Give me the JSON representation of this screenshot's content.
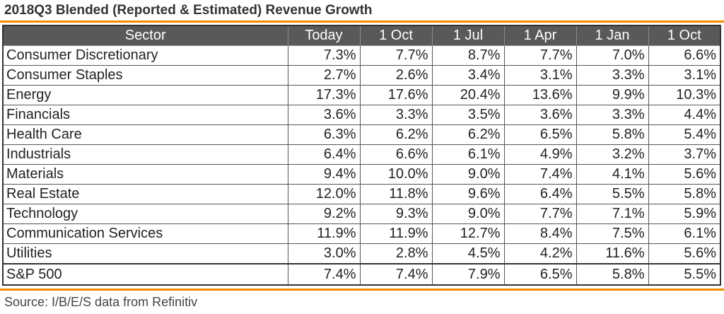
{
  "title": "2018Q3 Blended (Reported & Estimated) Revenue Growth",
  "source": "Source: I/B/E/S data from Refinitiv",
  "colors": {
    "accent": "#f28c00",
    "header_bg": "#595959"
  },
  "table": {
    "columns": [
      "Sector",
      "Today",
      "1 Oct",
      "1 Jul",
      "1 Apr",
      "1 Jan",
      "1 Oct"
    ],
    "rows": [
      [
        "Consumer Discretionary",
        "7.3%",
        "7.7%",
        "8.7%",
        "7.7%",
        "7.0%",
        "6.6%"
      ],
      [
        "Consumer Staples",
        "2.7%",
        "2.6%",
        "3.4%",
        "3.1%",
        "3.3%",
        "3.1%"
      ],
      [
        "Energy",
        "17.3%",
        "17.6%",
        "20.4%",
        "13.6%",
        "9.9%",
        "10.3%"
      ],
      [
        "Financials",
        "3.6%",
        "3.3%",
        "3.5%",
        "3.6%",
        "3.3%",
        "4.4%"
      ],
      [
        "Health Care",
        "6.3%",
        "6.2%",
        "6.2%",
        "6.5%",
        "5.8%",
        "5.4%"
      ],
      [
        "Industrials",
        "6.4%",
        "6.6%",
        "6.1%",
        "4.9%",
        "3.2%",
        "3.7%"
      ],
      [
        "Materials",
        "9.4%",
        "10.0%",
        "9.0%",
        "7.4%",
        "4.1%",
        "5.6%"
      ],
      [
        "Real Estate",
        "12.0%",
        "11.8%",
        "9.6%",
        "6.4%",
        "5.5%",
        "5.8%"
      ],
      [
        "Technology",
        "9.2%",
        "9.3%",
        "9.0%",
        "7.7%",
        "7.1%",
        "5.9%"
      ],
      [
        "Communication Services",
        "11.9%",
        "11.9%",
        "12.7%",
        "8.4%",
        "7.5%",
        "6.1%"
      ],
      [
        "Utilities",
        "3.0%",
        "2.8%",
        "4.5%",
        "4.2%",
        "11.6%",
        "5.6%"
      ]
    ],
    "total": [
      "S&P 500",
      "7.4%",
      "7.4%",
      "7.9%",
      "6.5%",
      "5.8%",
      "5.5%"
    ]
  }
}
